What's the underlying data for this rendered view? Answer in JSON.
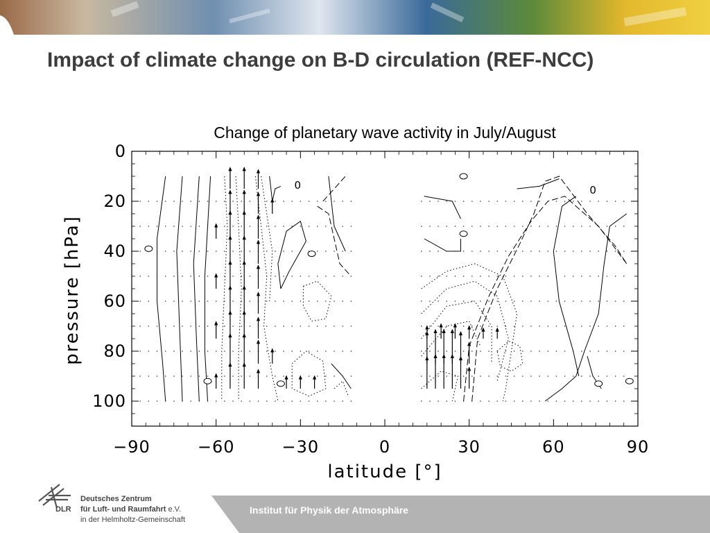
{
  "slide": {
    "title": "Impact of climate change on B-D circulation (REF-NCC)",
    "footer": "Institut für Physik der Atmosphäre"
  },
  "logo": {
    "abbr": "DLR",
    "line1": "Deutsches Zentrum",
    "line2": "für Luft- und Raumfahrt",
    "line2_suffix": "e.V.",
    "line3": "in der Helmholtz-Gemeinschaft"
  },
  "colors": {
    "title": "#3d3d3d",
    "footer_band": "#b3b3b3",
    "banner_left": "#8a5a3a",
    "banner_mid": "#3a6a9a",
    "banner_right": "#e0b020"
  },
  "chart_data": {
    "type": "vector-contour",
    "title": "Change of planetary wave activity in July/August",
    "xlabel": "latitude [°]",
    "ylabel": "pressure [hPa]",
    "xlim": [
      -90,
      90
    ],
    "ylim": [
      110,
      0
    ],
    "xticks": [
      -90,
      -60,
      -30,
      0,
      30,
      60,
      90
    ],
    "yticks": [
      0,
      20,
      40,
      60,
      80,
      100
    ],
    "xtick_labels": [
      "−90",
      "−60",
      "−30",
      "0",
      "30",
      "60",
      "90"
    ],
    "ytick_labels": [
      "0",
      "20",
      "40",
      "60",
      "80",
      "100"
    ],
    "grid": false,
    "data_regions": [
      {
        "name": "southern-hemisphere",
        "lat_range": [
          -87,
          -12
        ],
        "p_range": [
          10,
          100
        ]
      },
      {
        "name": "northern-hemisphere",
        "lat_range": [
          13,
          87
        ],
        "p_range": [
          10,
          100
        ]
      }
    ],
    "contour_labels": [
      {
        "text": "0",
        "lat": -31,
        "p": 15
      },
      {
        "text": "0",
        "lat": 74,
        "p": 17
      }
    ],
    "zero_markers": [
      {
        "lat": -84,
        "p": 39
      },
      {
        "lat": -63,
        "p": 92
      },
      {
        "lat": -37,
        "p": 93
      },
      {
        "lat": -26,
        "p": 41
      },
      {
        "lat": 28,
        "p": 10
      },
      {
        "lat": 28,
        "p": 33
      },
      {
        "lat": 76,
        "p": 93
      },
      {
        "lat": 87,
        "p": 92
      }
    ],
    "solid_contours": [
      [
        [
          -78,
          10
        ],
        [
          -81,
          35
        ],
        [
          -81,
          60
        ],
        [
          -79,
          85
        ],
        [
          -78,
          100
        ]
      ],
      [
        [
          -72,
          10
        ],
        [
          -74,
          40
        ],
        [
          -73,
          70
        ],
        [
          -72,
          100
        ]
      ],
      [
        [
          -66,
          10
        ],
        [
          -68,
          45
        ],
        [
          -67,
          75
        ],
        [
          -66,
          100
        ]
      ],
      [
        [
          -62,
          10
        ],
        [
          -64,
          50
        ],
        [
          -64,
          80
        ],
        [
          -63,
          100
        ]
      ],
      [
        [
          -41,
          10
        ],
        [
          -40,
          20
        ],
        [
          -39,
          15
        ],
        [
          -37,
          14
        ]
      ],
      [
        [
          -37,
          55
        ],
        [
          -38,
          45
        ],
        [
          -35,
          32
        ],
        [
          -30,
          28
        ],
        [
          -28,
          36
        ],
        [
          -34,
          48
        ],
        [
          -37,
          55
        ]
      ],
      [
        [
          -20,
          10
        ],
        [
          -18,
          30
        ],
        [
          -14,
          40
        ]
      ],
      [
        [
          -19,
          85
        ],
        [
          -15,
          90
        ],
        [
          -12,
          95
        ]
      ],
      [
        [
          27,
          27
        ],
        [
          24,
          20
        ],
        [
          14,
          18
        ]
      ],
      [
        [
          14,
          35
        ],
        [
          22,
          40
        ],
        [
          27,
          40
        ],
        [
          27,
          35
        ]
      ],
      [
        [
          47,
          15
        ],
        [
          55,
          14
        ],
        [
          62,
          11
        ]
      ],
      [
        [
          57,
          100
        ],
        [
          63,
          95
        ],
        [
          68,
          90
        ],
        [
          71,
          80
        ],
        [
          76,
          65
        ],
        [
          78,
          45
        ],
        [
          80,
          30
        ],
        [
          86,
          25
        ]
      ],
      [
        [
          69,
          90
        ],
        [
          67,
          80
        ],
        [
          62,
          60
        ],
        [
          60,
          40
        ],
        [
          63,
          22
        ],
        [
          68,
          18
        ]
      ],
      [
        [
          77,
          95
        ],
        [
          74,
          90
        ],
        [
          72,
          82
        ]
      ]
    ],
    "dotted_contours": [
      [
        [
          -57,
          10
        ],
        [
          -56,
          30
        ],
        [
          -57,
          55
        ],
        [
          -58,
          80
        ],
        [
          -58,
          100
        ]
      ],
      [
        [
          -53,
          10
        ],
        [
          -52,
          30
        ],
        [
          -51,
          55
        ],
        [
          -52,
          80
        ],
        [
          -52,
          100
        ]
      ],
      [
        [
          -46,
          10
        ],
        [
          -44,
          30
        ],
        [
          -42,
          50
        ],
        [
          -43,
          70
        ],
        [
          -40,
          90
        ],
        [
          -38,
          100
        ]
      ],
      [
        [
          -44,
          10
        ],
        [
          -42,
          25
        ],
        [
          -40,
          40
        ],
        [
          -41,
          60
        ]
      ],
      [
        [
          -29,
          54
        ],
        [
          -24,
          52
        ],
        [
          -19,
          58
        ],
        [
          -21,
          67
        ],
        [
          -26,
          68
        ],
        [
          -29,
          62
        ],
        [
          -29,
          54
        ]
      ],
      [
        [
          -33,
          85
        ],
        [
          -28,
          80
        ],
        [
          -22,
          84
        ],
        [
          -21,
          95
        ],
        [
          -27,
          98
        ],
        [
          -33,
          95
        ],
        [
          -33,
          85
        ]
      ],
      [
        [
          -18,
          95
        ],
        [
          -15,
          92
        ],
        [
          -13,
          98
        ]
      ],
      [
        [
          13,
          55
        ],
        [
          22,
          48
        ],
        [
          32,
          45
        ],
        [
          42,
          50
        ],
        [
          47,
          65
        ],
        [
          45,
          80
        ],
        [
          43,
          95
        ],
        [
          42,
          100
        ]
      ],
      [
        [
          13,
          65
        ],
        [
          22,
          55
        ],
        [
          32,
          52
        ],
        [
          40,
          58
        ],
        [
          44,
          75
        ],
        [
          40,
          92
        ]
      ],
      [
        [
          13,
          75
        ],
        [
          22,
          62
        ],
        [
          32,
          60
        ],
        [
          38,
          70
        ],
        [
          38,
          85
        ]
      ],
      [
        [
          13,
          82
        ],
        [
          22,
          70
        ],
        [
          30,
          68
        ],
        [
          34,
          78
        ]
      ],
      [
        [
          40,
          80
        ],
        [
          44,
          76
        ],
        [
          48,
          78
        ],
        [
          49,
          85
        ],
        [
          45,
          88
        ],
        [
          41,
          86
        ],
        [
          40,
          80
        ]
      ],
      [
        [
          13,
          95
        ],
        [
          20,
          88
        ],
        [
          26,
          90
        ],
        [
          24,
          100
        ]
      ]
    ],
    "dashed_contours": [
      [
        [
          -24,
          22
        ],
        [
          -20,
          25
        ],
        [
          -18,
          35
        ],
        [
          -16,
          45
        ],
        [
          -12,
          50
        ]
      ],
      [
        [
          -22,
          20
        ],
        [
          -18,
          15
        ],
        [
          -14,
          10
        ]
      ],
      [
        [
          31,
          100
        ],
        [
          33,
          75
        ],
        [
          40,
          55
        ],
        [
          48,
          37
        ],
        [
          53,
          25
        ],
        [
          57,
          12
        ],
        [
          62,
          10
        ],
        [
          72,
          25
        ],
        [
          82,
          38
        ],
        [
          86,
          45
        ]
      ],
      [
        [
          28,
          100
        ],
        [
          30,
          78
        ],
        [
          37,
          58
        ],
        [
          44,
          42
        ],
        [
          52,
          28
        ],
        [
          58,
          20
        ],
        [
          64,
          18
        ],
        [
          76,
          30
        ],
        [
          86,
          45
        ]
      ]
    ],
    "arrows_up": [
      {
        "lat": -55,
        "p": 15,
        "len": 1.0
      },
      {
        "lat": -50,
        "p": 15,
        "len": 1.0
      },
      {
        "lat": -45,
        "p": 15,
        "len": 0.9
      },
      {
        "lat": -55,
        "p": 25,
        "len": 1.1
      },
      {
        "lat": -50,
        "p": 25,
        "len": 1.1
      },
      {
        "lat": -45,
        "p": 25,
        "len": 1.0
      },
      {
        "lat": -55,
        "p": 35,
        "len": 1.3
      },
      {
        "lat": -50,
        "p": 35,
        "len": 1.3
      },
      {
        "lat": -45,
        "p": 35,
        "len": 1.1
      },
      {
        "lat": -55,
        "p": 45,
        "len": 1.3
      },
      {
        "lat": -50,
        "p": 45,
        "len": 1.3
      },
      {
        "lat": -45,
        "p": 45,
        "len": 1.1
      },
      {
        "lat": -55,
        "p": 55,
        "len": 1.3
      },
      {
        "lat": -50,
        "p": 55,
        "len": 1.3
      },
      {
        "lat": -45,
        "p": 55,
        "len": 1.1
      },
      {
        "lat": -55,
        "p": 65,
        "len": 1.3
      },
      {
        "lat": -50,
        "p": 65,
        "len": 1.3
      },
      {
        "lat": -45,
        "p": 65,
        "len": 1.0
      },
      {
        "lat": -55,
        "p": 75,
        "len": 1.3
      },
      {
        "lat": -50,
        "p": 75,
        "len": 1.3
      },
      {
        "lat": -45,
        "p": 75,
        "len": 1.0
      },
      {
        "lat": -55,
        "p": 85,
        "len": 1.4
      },
      {
        "lat": -50,
        "p": 85,
        "len": 1.4
      },
      {
        "lat": -45,
        "p": 85,
        "len": 1.1
      },
      {
        "lat": -55,
        "p": 95,
        "len": 1.2
      },
      {
        "lat": -50,
        "p": 95,
        "len": 1.2
      },
      {
        "lat": -45,
        "p": 95,
        "len": 0.9
      },
      {
        "lat": -60,
        "p": 35,
        "len": 0.7
      },
      {
        "lat": -60,
        "p": 55,
        "len": 0.7
      },
      {
        "lat": -60,
        "p": 75,
        "len": 0.8
      },
      {
        "lat": -60,
        "p": 95,
        "len": 0.7
      },
      {
        "lat": -40,
        "p": 25,
        "len": 0.7
      },
      {
        "lat": -40,
        "p": 85,
        "len": 0.7
      },
      {
        "lat": -35,
        "p": 95,
        "len": 0.6
      },
      {
        "lat": -30,
        "p": 95,
        "len": 0.6
      },
      {
        "lat": -25,
        "p": 95,
        "len": 0.6
      },
      {
        "lat": 15,
        "p": 85,
        "len": 1.5
      },
      {
        "lat": 18,
        "p": 85,
        "len": 1.6
      },
      {
        "lat": 21,
        "p": 85,
        "len": 1.6
      },
      {
        "lat": 24,
        "p": 85,
        "len": 1.6
      },
      {
        "lat": 27,
        "p": 85,
        "len": 1.5
      },
      {
        "lat": 30,
        "p": 85,
        "len": 1.0
      },
      {
        "lat": 15,
        "p": 95,
        "len": 1.5
      },
      {
        "lat": 18,
        "p": 95,
        "len": 1.6
      },
      {
        "lat": 21,
        "p": 95,
        "len": 1.6
      },
      {
        "lat": 24,
        "p": 95,
        "len": 1.6
      },
      {
        "lat": 27,
        "p": 95,
        "len": 1.5
      },
      {
        "lat": 30,
        "p": 95,
        "len": 1.0
      },
      {
        "lat": 15,
        "p": 75,
        "len": 0.6
      },
      {
        "lat": 20,
        "p": 75,
        "len": 0.7
      },
      {
        "lat": 25,
        "p": 75,
        "len": 0.7
      },
      {
        "lat": 30,
        "p": 75,
        "len": 0.6
      },
      {
        "lat": 35,
        "p": 75,
        "len": 0.5
      },
      {
        "lat": 40,
        "p": 75,
        "len": 0.5
      }
    ]
  }
}
